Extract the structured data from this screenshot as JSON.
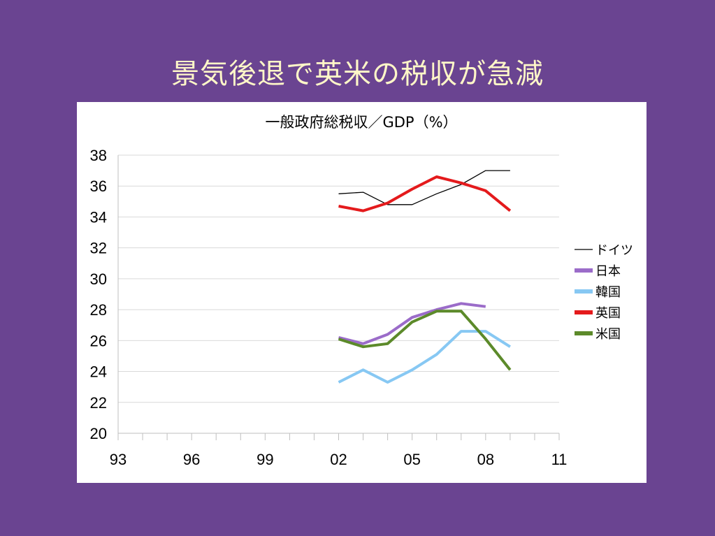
{
  "slide": {
    "title": "景気後退で英米の税収が急減"
  },
  "chart_data": {
    "type": "line",
    "title": "一般政府総税収／GDP（%）",
    "xlim": [
      1993,
      2011
    ],
    "ylim": [
      20,
      38
    ],
    "y_ticks": [
      20,
      22,
      24,
      26,
      28,
      30,
      32,
      34,
      36,
      38
    ],
    "x_tick_labels": [
      {
        "year": 1993,
        "label": "93"
      },
      {
        "year": 1996,
        "label": "96"
      },
      {
        "year": 1999,
        "label": "99"
      },
      {
        "year": 2002,
        "label": "02"
      },
      {
        "year": 2005,
        "label": "05"
      },
      {
        "year": 2008,
        "label": "08"
      },
      {
        "year": 2011,
        "label": "11"
      }
    ],
    "legend_position": "right",
    "grid": "horizontal",
    "series": [
      {
        "name": "ドイツ",
        "color": "#000000",
        "x": [
          2002,
          2003,
          2004,
          2005,
          2006,
          2007,
          2008,
          2009
        ],
        "y": [
          35.5,
          35.6,
          34.8,
          34.8,
          35.5,
          36.1,
          37.0,
          37.0
        ]
      },
      {
        "name": "日本",
        "color": "#9b6cc9",
        "x": [
          2002,
          2003,
          2004,
          2005,
          2006,
          2007,
          2008
        ],
        "y": [
          26.2,
          25.8,
          26.4,
          27.5,
          28.0,
          28.4,
          28.2
        ]
      },
      {
        "name": "韓国",
        "color": "#87c8f3",
        "x": [
          2002,
          2003,
          2004,
          2005,
          2006,
          2007,
          2008,
          2009
        ],
        "y": [
          23.3,
          24.1,
          23.3,
          24.1,
          25.1,
          26.6,
          26.6,
          25.6
        ]
      },
      {
        "name": "英国",
        "color": "#e41a1c",
        "x": [
          2002,
          2003,
          2004,
          2005,
          2006,
          2007,
          2008,
          2009
        ],
        "y": [
          34.7,
          34.4,
          34.9,
          35.8,
          36.6,
          36.2,
          35.7,
          34.4
        ]
      },
      {
        "name": "米国",
        "color": "#5c8a2a",
        "x": [
          2002,
          2003,
          2004,
          2005,
          2006,
          2007,
          2008,
          2009
        ],
        "y": [
          26.1,
          25.6,
          25.8,
          27.2,
          27.9,
          27.9,
          26.1,
          24.1
        ]
      }
    ]
  }
}
